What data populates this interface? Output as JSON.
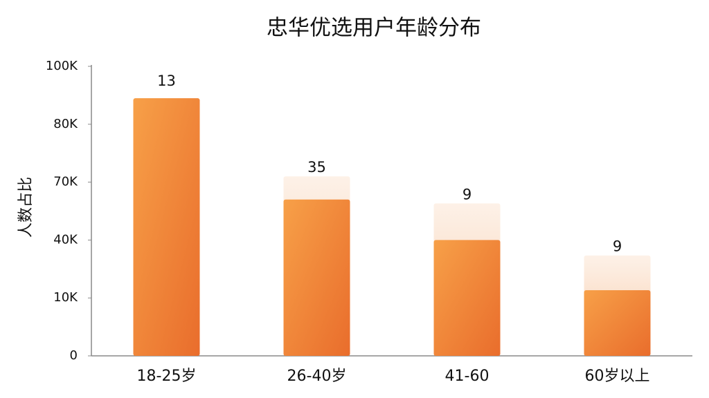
{
  "chart_data": {
    "type": "bar",
    "title": "忠华优选用户年龄分布",
    "y_label": "人数占比",
    "categories": [
      "18-25岁",
      "26-40岁",
      "41-60",
      "60岁以上"
    ],
    "series": [
      {
        "color": "#ee8235",
        "values": [
          89000,
          61000,
          40000,
          14000
        ]
      },
      {
        "color": "#f9d7bd",
        "values": [
          null,
          71000,
          59000,
          32000
        ]
      }
    ],
    "annotations": [
      "13",
      "35",
      "9",
      "9"
    ],
    "ylim": [
      0,
      100000
    ],
    "yticks": [
      0,
      {
        "value": 10000,
        "label": "10K"
      },
      {
        "value": 40000,
        "label": "40K"
      },
      {
        "value": 70000,
        "label": "70K"
      },
      {
        "value": 80000,
        "label": "80K"
      },
      {
        "value": 100000,
        "label": "100K"
      }
    ],
    "grid": false
  }
}
